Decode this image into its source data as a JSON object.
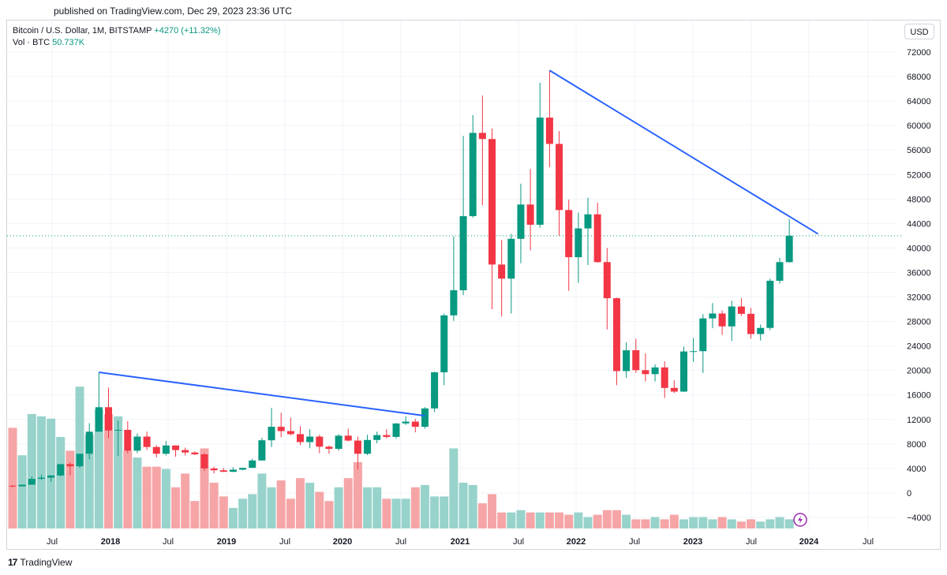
{
  "header": {
    "published": "published on TradingView.com, Dec 29, 2023 23:36 UTC"
  },
  "legend": {
    "symbol": "Bitcoin / U.S. Dollar, 1M, BITSTAMP",
    "change": "+4270 (+11.32%)",
    "vol_label": "Vol · BTC",
    "vol_value": "50.737K"
  },
  "currency_button": "USD",
  "brand": {
    "logo": "17",
    "name": "TradingView"
  },
  "colors": {
    "up": "#089981",
    "down": "#f23645",
    "vol_up": "#98d3cb",
    "vol_down": "#f6a5a7",
    "trendline": "#2962ff",
    "price_line": "#089981"
  },
  "chart_data": {
    "type": "candlestick",
    "x_labels": [
      "Jul",
      "2018",
      "Jul",
      "2019",
      "Jul",
      "2020",
      "Jul",
      "2021",
      "Jul",
      "2022",
      "Jul",
      "2023",
      "Jul",
      "2024",
      "Jul"
    ],
    "y_ticks": [
      72000,
      68000,
      64000,
      60000,
      56000,
      52000,
      48000,
      44000,
      40000,
      36000,
      32000,
      28000,
      24000,
      20000,
      16000,
      12000,
      8000,
      4000,
      0,
      -4000
    ],
    "ylim": [
      -4000,
      72000
    ],
    "current_price": 42000,
    "candles": [
      {
        "date": "2017-03",
        "o": 1180,
        "h": 1280,
        "l": 900,
        "c": 1080
      },
      {
        "date": "2017-04",
        "o": 1080,
        "h": 1350,
        "l": 1050,
        "c": 1350
      },
      {
        "date": "2017-05",
        "o": 1350,
        "h": 2700,
        "l": 1350,
        "c": 2300
      },
      {
        "date": "2017-06",
        "o": 2300,
        "h": 3000,
        "l": 2100,
        "c": 2500
      },
      {
        "date": "2017-07",
        "o": 2500,
        "h": 2900,
        "l": 1800,
        "c": 2850
      },
      {
        "date": "2017-08",
        "o": 2850,
        "h": 4700,
        "l": 2700,
        "c": 4700
      },
      {
        "date": "2017-09",
        "o": 4700,
        "h": 5000,
        "l": 2900,
        "c": 4350
      },
      {
        "date": "2017-10",
        "o": 4350,
        "h": 6400,
        "l": 4100,
        "c": 6400
      },
      {
        "date": "2017-11",
        "o": 6400,
        "h": 11400,
        "l": 5500,
        "c": 10000
      },
      {
        "date": "2017-12",
        "o": 10000,
        "h": 19700,
        "l": 10000,
        "c": 14000
      },
      {
        "date": "2018-01",
        "o": 14000,
        "h": 17200,
        "l": 9000,
        "c": 10200
      },
      {
        "date": "2018-02",
        "o": 10200,
        "h": 11800,
        "l": 6000,
        "c": 10300
      },
      {
        "date": "2018-03",
        "o": 10300,
        "h": 11700,
        "l": 6500,
        "c": 6900
      },
      {
        "date": "2018-04",
        "o": 6900,
        "h": 9700,
        "l": 6500,
        "c": 9200
      },
      {
        "date": "2018-05",
        "o": 9200,
        "h": 10000,
        "l": 7000,
        "c": 7500
      },
      {
        "date": "2018-06",
        "o": 7500,
        "h": 7800,
        "l": 5800,
        "c": 6400
      },
      {
        "date": "2018-07",
        "o": 6400,
        "h": 8500,
        "l": 6100,
        "c": 7750
      },
      {
        "date": "2018-08",
        "o": 7750,
        "h": 7750,
        "l": 5900,
        "c": 7000
      },
      {
        "date": "2018-09",
        "o": 7000,
        "h": 7400,
        "l": 6100,
        "c": 6600
      },
      {
        "date": "2018-10",
        "o": 6600,
        "h": 6800,
        "l": 6200,
        "c": 6300
      },
      {
        "date": "2018-11",
        "o": 6300,
        "h": 6500,
        "l": 3600,
        "c": 4000
      },
      {
        "date": "2018-12",
        "o": 4000,
        "h": 4300,
        "l": 3200,
        "c": 3700
      },
      {
        "date": "2019-01",
        "o": 3700,
        "h": 4100,
        "l": 3400,
        "c": 3450
      },
      {
        "date": "2019-02",
        "o": 3450,
        "h": 4200,
        "l": 3400,
        "c": 3800
      },
      {
        "date": "2019-03",
        "o": 3800,
        "h": 4100,
        "l": 3700,
        "c": 4100
      },
      {
        "date": "2019-04",
        "o": 4100,
        "h": 5600,
        "l": 4100,
        "c": 5300
      },
      {
        "date": "2019-05",
        "o": 5300,
        "h": 9000,
        "l": 5300,
        "c": 8600
      },
      {
        "date": "2019-06",
        "o": 8600,
        "h": 13900,
        "l": 7500,
        "c": 10800
      },
      {
        "date": "2019-07",
        "o": 10800,
        "h": 13100,
        "l": 9100,
        "c": 10100
      },
      {
        "date": "2019-08",
        "o": 10100,
        "h": 12300,
        "l": 9400,
        "c": 9600
      },
      {
        "date": "2019-09",
        "o": 9600,
        "h": 10900,
        "l": 7800,
        "c": 8300
      },
      {
        "date": "2019-10",
        "o": 8300,
        "h": 10400,
        "l": 7300,
        "c": 9200
      },
      {
        "date": "2019-11",
        "o": 9200,
        "h": 9500,
        "l": 6500,
        "c": 7550
      },
      {
        "date": "2019-12",
        "o": 7550,
        "h": 7750,
        "l": 6400,
        "c": 7200
      },
      {
        "date": "2020-01",
        "o": 7200,
        "h": 9600,
        "l": 6900,
        "c": 9350
      },
      {
        "date": "2020-02",
        "o": 9350,
        "h": 10500,
        "l": 8400,
        "c": 8550
      },
      {
        "date": "2020-03",
        "o": 8550,
        "h": 9200,
        "l": 3800,
        "c": 6400
      },
      {
        "date": "2020-04",
        "o": 6400,
        "h": 9500,
        "l": 6200,
        "c": 8650
      },
      {
        "date": "2020-05",
        "o": 8650,
        "h": 10000,
        "l": 8100,
        "c": 9450
      },
      {
        "date": "2020-06",
        "o": 9450,
        "h": 10400,
        "l": 8900,
        "c": 9150
      },
      {
        "date": "2020-07",
        "o": 9150,
        "h": 11400,
        "l": 8900,
        "c": 11350
      },
      {
        "date": "2020-08",
        "o": 11350,
        "h": 12500,
        "l": 11100,
        "c": 11650
      },
      {
        "date": "2020-09",
        "o": 11650,
        "h": 12100,
        "l": 9900,
        "c": 10800
      },
      {
        "date": "2020-10",
        "o": 10800,
        "h": 14000,
        "l": 10500,
        "c": 13800
      },
      {
        "date": "2020-11",
        "o": 13800,
        "h": 19800,
        "l": 13200,
        "c": 19700
      },
      {
        "date": "2020-12",
        "o": 19700,
        "h": 29300,
        "l": 17600,
        "c": 29000
      },
      {
        "date": "2021-01",
        "o": 29000,
        "h": 41900,
        "l": 28100,
        "c": 33100
      },
      {
        "date": "2021-02",
        "o": 33100,
        "h": 58300,
        "l": 32300,
        "c": 45200
      },
      {
        "date": "2021-03",
        "o": 45200,
        "h": 61700,
        "l": 45000,
        "c": 58800
      },
      {
        "date": "2021-04",
        "o": 58800,
        "h": 64900,
        "l": 47000,
        "c": 57800
      },
      {
        "date": "2021-05",
        "o": 57800,
        "h": 59500,
        "l": 30000,
        "c": 37300
      },
      {
        "date": "2021-06",
        "o": 37300,
        "h": 41300,
        "l": 28800,
        "c": 35000
      },
      {
        "date": "2021-07",
        "o": 35000,
        "h": 42300,
        "l": 29300,
        "c": 41500
      },
      {
        "date": "2021-08",
        "o": 41500,
        "h": 50500,
        "l": 37500,
        "c": 47100
      },
      {
        "date": "2021-09",
        "o": 47100,
        "h": 52900,
        "l": 39600,
        "c": 43800
      },
      {
        "date": "2021-10",
        "o": 43800,
        "h": 67000,
        "l": 43300,
        "c": 61300
      },
      {
        "date": "2021-11",
        "o": 61300,
        "h": 69000,
        "l": 53200,
        "c": 57000
      },
      {
        "date": "2021-12",
        "o": 57000,
        "h": 59100,
        "l": 42000,
        "c": 46200
      },
      {
        "date": "2022-01",
        "o": 46200,
        "h": 47900,
        "l": 33000,
        "c": 38500
      },
      {
        "date": "2022-02",
        "o": 38500,
        "h": 45800,
        "l": 34300,
        "c": 43200
      },
      {
        "date": "2022-03",
        "o": 43200,
        "h": 48200,
        "l": 37200,
        "c": 45500
      },
      {
        "date": "2022-04",
        "o": 45500,
        "h": 47400,
        "l": 37600,
        "c": 37700
      },
      {
        "date": "2022-05",
        "o": 37700,
        "h": 40000,
        "l": 26700,
        "c": 31800
      },
      {
        "date": "2022-06",
        "o": 31800,
        "h": 31900,
        "l": 17600,
        "c": 19900
      },
      {
        "date": "2022-07",
        "o": 19900,
        "h": 24600,
        "l": 18800,
        "c": 23300
      },
      {
        "date": "2022-08",
        "o": 23300,
        "h": 25200,
        "l": 19600,
        "c": 20050
      },
      {
        "date": "2022-09",
        "o": 20050,
        "h": 22800,
        "l": 18200,
        "c": 19400
      },
      {
        "date": "2022-10",
        "o": 19400,
        "h": 21000,
        "l": 18200,
        "c": 20500
      },
      {
        "date": "2022-11",
        "o": 20500,
        "h": 21500,
        "l": 15500,
        "c": 17150
      },
      {
        "date": "2022-12",
        "o": 17150,
        "h": 18400,
        "l": 16300,
        "c": 16550
      },
      {
        "date": "2023-01",
        "o": 16550,
        "h": 23900,
        "l": 16500,
        "c": 23100
      },
      {
        "date": "2023-02",
        "o": 23100,
        "h": 25300,
        "l": 21400,
        "c": 23150
      },
      {
        "date": "2023-03",
        "o": 23150,
        "h": 29200,
        "l": 19600,
        "c": 28500
      },
      {
        "date": "2023-04",
        "o": 28500,
        "h": 31000,
        "l": 26900,
        "c": 29300
      },
      {
        "date": "2023-05",
        "o": 29300,
        "h": 29800,
        "l": 25800,
        "c": 27200
      },
      {
        "date": "2023-06",
        "o": 27200,
        "h": 31400,
        "l": 24800,
        "c": 30450
      },
      {
        "date": "2023-07",
        "o": 30450,
        "h": 31800,
        "l": 28900,
        "c": 29250
      },
      {
        "date": "2023-08",
        "o": 29250,
        "h": 30200,
        "l": 25200,
        "c": 25950
      },
      {
        "date": "2023-09",
        "o": 25950,
        "h": 27500,
        "l": 24900,
        "c": 26950
      },
      {
        "date": "2023-10",
        "o": 26950,
        "h": 35000,
        "l": 26600,
        "c": 34650
      },
      {
        "date": "2023-11",
        "o": 34650,
        "h": 38400,
        "l": 34200,
        "c": 37700
      },
      {
        "date": "2023-12",
        "o": 37700,
        "h": 44700,
        "l": 37600,
        "c": 42000
      }
    ],
    "volume_btc": [
      220,
      160,
      250,
      245,
      240,
      200,
      170,
      310,
      205,
      260,
      250,
      245,
      170,
      155,
      135,
      135,
      130,
      90,
      120,
      60,
      175,
      100,
      70,
      45,
      65,
      75,
      120,
      90,
      105,
      65,
      110,
      100,
      80,
      60,
      90,
      110,
      145,
      90,
      90,
      65,
      65,
      65,
      90,
      95,
      70,
      70,
      175,
      100,
      95,
      55,
      75,
      35,
      35,
      40,
      35,
      35,
      35,
      35,
      30,
      35,
      25,
      30,
      40,
      40,
      30,
      20,
      20,
      25,
      20,
      30,
      20,
      25,
      25,
      20,
      25,
      20,
      15,
      20,
      15,
      20,
      25,
      20
    ]
  },
  "trendlines": [
    {
      "from": {
        "date": "2017-12",
        "price": 19700
      },
      "to": {
        "date": "2020-10",
        "price": 12600
      }
    },
    {
      "from": {
        "date": "2021-11",
        "price": 69000
      },
      "to": {
        "date": "2024-03",
        "price": 42300
      }
    }
  ]
}
